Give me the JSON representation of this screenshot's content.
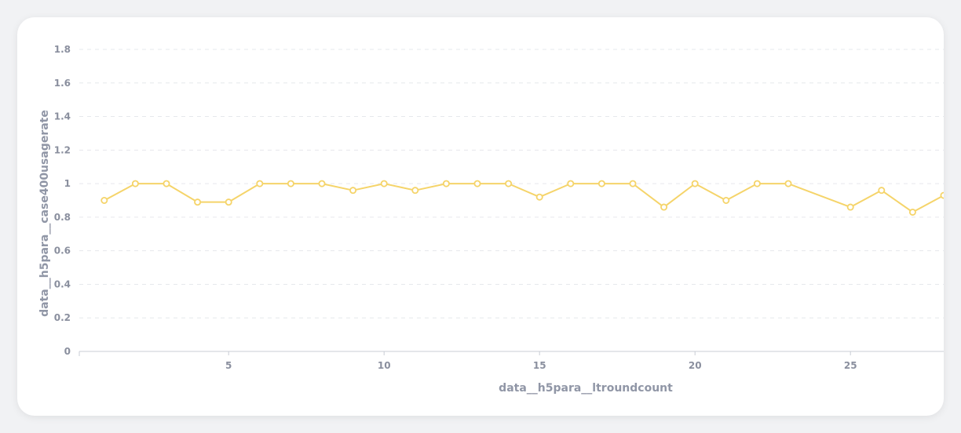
{
  "chart_data": {
    "type": "line",
    "xlabel": "data__h5para__ltroundcount",
    "ylabel": "data__h5para__case400usagerate",
    "ylim": [
      0,
      1.8
    ],
    "xlim": [
      0,
      28
    ],
    "y_ticks": [
      "0",
      "0.2",
      "0.4",
      "0.6",
      "0.8",
      "1",
      "1.2",
      "1.4",
      "1.6",
      "1.8"
    ],
    "x_ticks": [
      "5",
      "10",
      "15",
      "20",
      "25"
    ],
    "grid": true,
    "series": [
      {
        "color": "#f5d46a",
        "x": [
          1,
          2,
          3,
          4,
          5,
          6,
          7,
          8,
          9,
          10,
          11,
          12,
          13,
          14,
          15,
          16,
          17,
          18,
          19,
          20,
          21,
          22,
          23,
          25,
          26,
          27,
          28
        ],
        "y": [
          0.9,
          1.0,
          1.0,
          0.89,
          0.89,
          1.0,
          1.0,
          1.0,
          0.96,
          1.0,
          0.96,
          1.0,
          1.0,
          1.0,
          0.92,
          1.0,
          1.0,
          1.0,
          0.86,
          1.0,
          0.9,
          1.0,
          1.0,
          0.86,
          0.96,
          0.83,
          0.93
        ]
      }
    ]
  }
}
